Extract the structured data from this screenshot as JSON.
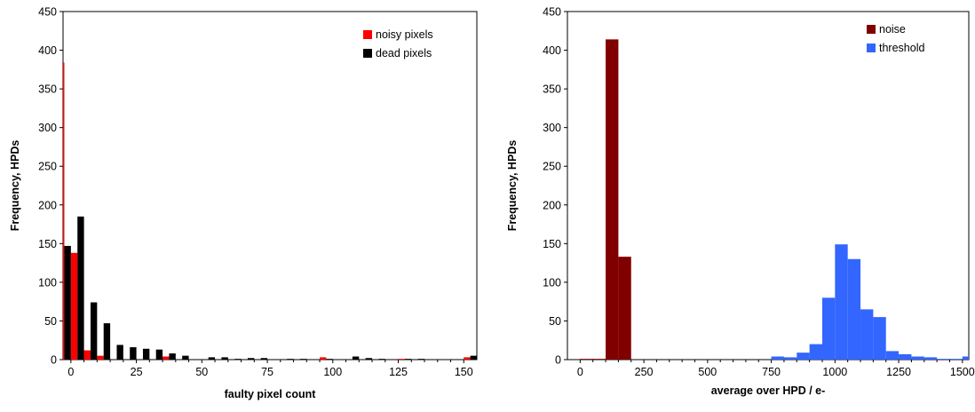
{
  "chart_data": [
    {
      "type": "bar",
      "xlabel": "faulty pixel count",
      "ylabel": "Frequency, HPDs",
      "xlim": [
        -3,
        155
      ],
      "ylim": [
        0,
        450
      ],
      "xticks": [
        0,
        25,
        50,
        75,
        100,
        125,
        150
      ],
      "yticks": [
        0,
        50,
        100,
        150,
        200,
        250,
        300,
        350,
        400,
        450
      ],
      "bin_width": 5,
      "legend_position": "top-right",
      "series": [
        {
          "name": "noisy pixels",
          "color": "#ff0000",
          "points": [
            [
              -5,
              384
            ],
            [
              0,
              138
            ],
            [
              5,
              12
            ],
            [
              10,
              5
            ],
            [
              35,
              4
            ],
            [
              95,
              3
            ],
            [
              125,
              1
            ],
            [
              150,
              3
            ]
          ]
        },
        {
          "name": "dead pixels",
          "color": "#000000",
          "points": [
            [
              -5,
              147
            ],
            [
              0,
              185
            ],
            [
              5,
              74
            ],
            [
              10,
              47
            ],
            [
              15,
              19
            ],
            [
              20,
              16
            ],
            [
              25,
              14
            ],
            [
              30,
              13
            ],
            [
              35,
              8
            ],
            [
              40,
              5
            ],
            [
              50,
              3
            ],
            [
              55,
              3
            ],
            [
              60,
              1
            ],
            [
              65,
              2
            ],
            [
              70,
              2
            ],
            [
              80,
              1
            ],
            [
              85,
              1
            ],
            [
              95,
              1
            ],
            [
              105,
              4
            ],
            [
              110,
              2
            ],
            [
              115,
              1
            ],
            [
              125,
              1
            ],
            [
              130,
              1
            ],
            [
              150,
              5
            ]
          ]
        }
      ]
    },
    {
      "type": "bar",
      "xlabel": "average over HPD / e-",
      "ylabel": "Frequency, HPDs",
      "xlim": [
        -50,
        1525
      ],
      "ylim": [
        0,
        450
      ],
      "xticks": [
        0,
        250,
        500,
        750,
        1000,
        1250,
        1500
      ],
      "yticks": [
        0,
        50,
        100,
        150,
        200,
        250,
        300,
        350,
        400,
        450
      ],
      "bin_width": 50,
      "legend_position": "top-right",
      "series": [
        {
          "name": "noise",
          "color": "#800000",
          "points": [
            [
              0,
              1
            ],
            [
              50,
              1
            ],
            [
              100,
              414
            ],
            [
              150,
              133
            ]
          ]
        },
        {
          "name": "threshold",
          "color": "#3366ff",
          "points": [
            [
              750,
              4
            ],
            [
              800,
              3
            ],
            [
              850,
              9
            ],
            [
              900,
              20
            ],
            [
              950,
              80
            ],
            [
              1000,
              149
            ],
            [
              1050,
              130
            ],
            [
              1100,
              65
            ],
            [
              1150,
              55
            ],
            [
              1200,
              11
            ],
            [
              1250,
              7
            ],
            [
              1300,
              4
            ],
            [
              1350,
              3
            ],
            [
              1400,
              1
            ],
            [
              1450,
              1
            ],
            [
              1500,
              4
            ]
          ]
        }
      ]
    }
  ]
}
